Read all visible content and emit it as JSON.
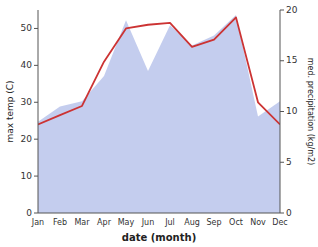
{
  "chart_data": {
    "type": "line",
    "xlabel": "date (month)",
    "ylabel": "max temp (C)",
    "y2label": "med. precipitation (kg/m2)",
    "categories": [
      "Jan",
      "Feb",
      "Mar",
      "Apr",
      "May",
      "Jun",
      "Jul",
      "Aug",
      "Sep",
      "Oct",
      "Nov",
      "Dec"
    ],
    "series": [
      {
        "type": "area",
        "axis": "y2",
        "color": "#b0bce8",
        "values": [
          9.0,
          10.5,
          11.0,
          13.5,
          19.0,
          14.0,
          18.5,
          16.5,
          17.5,
          19.5,
          9.5,
          11.0
        ]
      },
      {
        "type": "line",
        "color": "#cc3333",
        "values": [
          24.0,
          26.5,
          29.0,
          41.0,
          50.0,
          51.0,
          51.5,
          45.0,
          47.0,
          53.0,
          30.0,
          24.0
        ]
      }
    ],
    "ylim": [
      0,
      55
    ],
    "yticks": [
      0,
      10,
      20,
      30,
      40,
      50
    ],
    "y2lim": [
      0,
      20
    ],
    "y2ticks": [
      0,
      5,
      10,
      15,
      20
    ],
    "grid": false
  }
}
